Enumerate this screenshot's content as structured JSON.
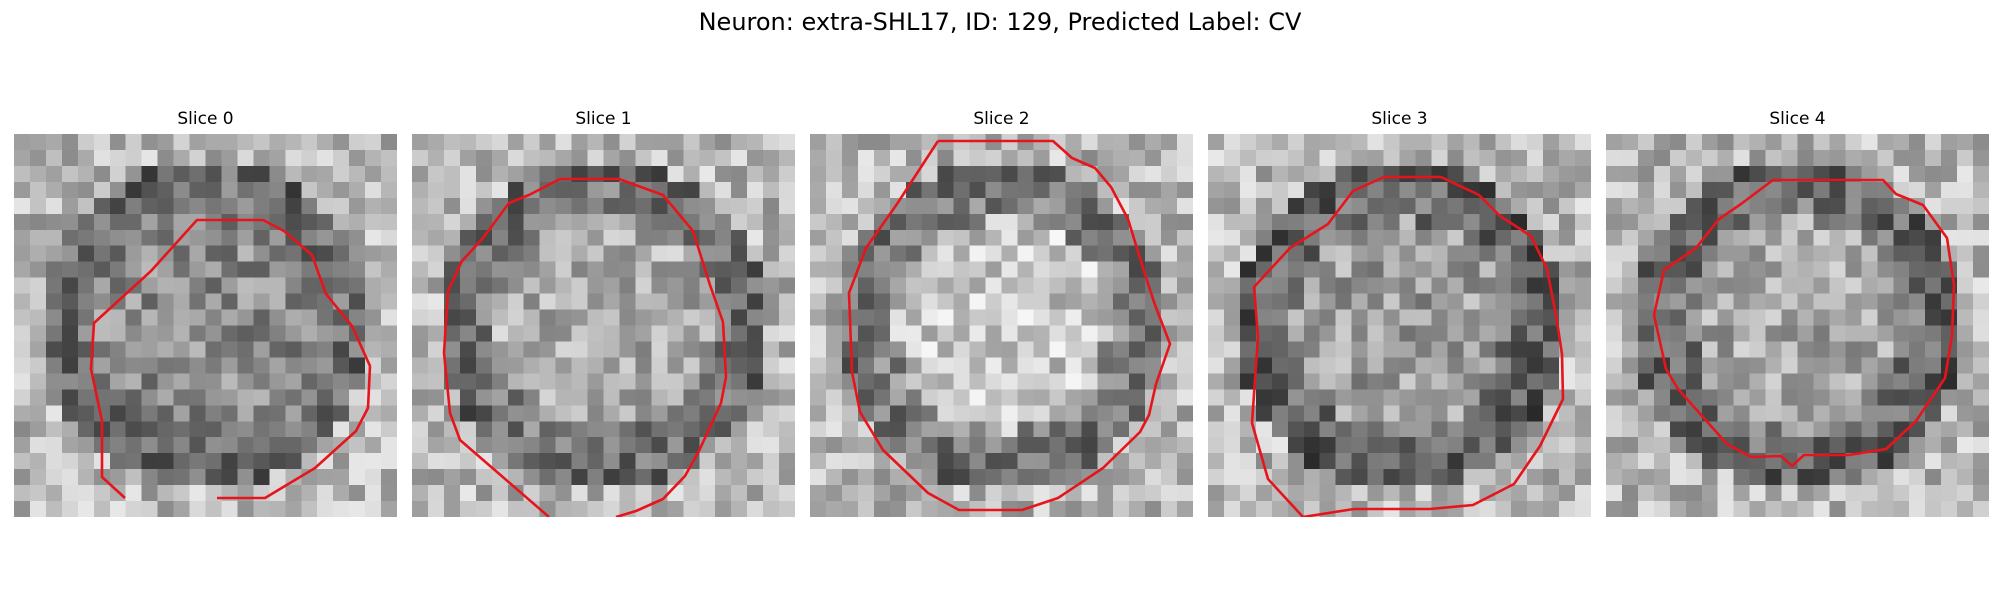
{
  "figure": {
    "title": "Neuron: extra-SHL17, ID: 129, Predicted Label: CV",
    "contour_color": "#e8141b",
    "colormap": "gray",
    "panels": [
      {
        "title": "Slice 0",
        "seed": 11,
        "center_brightness": 0.55,
        "ring_darkness": 0.38
      },
      {
        "title": "Slice 1",
        "seed": 23,
        "center_brightness": 0.68,
        "ring_darkness": 0.4
      },
      {
        "title": "Slice 2",
        "seed": 37,
        "center_brightness": 0.78,
        "ring_darkness": 0.42
      },
      {
        "title": "Slice 3",
        "seed": 51,
        "center_brightness": 0.62,
        "ring_darkness": 0.34
      },
      {
        "title": "Slice 4",
        "seed": 67,
        "center_brightness": 0.66,
        "ring_darkness": 0.36
      }
    ]
  }
}
